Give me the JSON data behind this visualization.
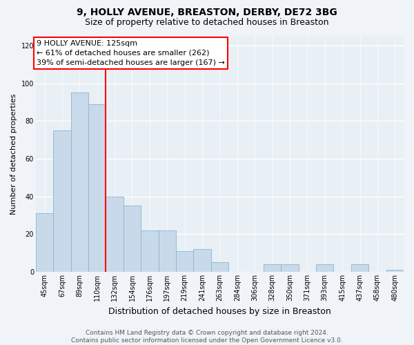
{
  "title": "9, HOLLY AVENUE, BREASTON, DERBY, DE72 3BG",
  "subtitle": "Size of property relative to detached houses in Breaston",
  "xlabel": "Distribution of detached houses by size in Breaston",
  "ylabel": "Number of detached properties",
  "bins": [
    "45sqm",
    "67sqm",
    "89sqm",
    "110sqm",
    "132sqm",
    "154sqm",
    "176sqm",
    "197sqm",
    "219sqm",
    "241sqm",
    "263sqm",
    "284sqm",
    "306sqm",
    "328sqm",
    "350sqm",
    "371sqm",
    "393sqm",
    "415sqm",
    "437sqm",
    "458sqm",
    "480sqm"
  ],
  "values": [
    31,
    75,
    95,
    89,
    40,
    35,
    22,
    22,
    11,
    12,
    5,
    0,
    0,
    4,
    4,
    0,
    4,
    0,
    4,
    0,
    1
  ],
  "bar_color": "#c8daea",
  "bar_edge_color": "#8ab5ce",
  "vline_color": "red",
  "vline_x": 3.5,
  "annotation_text": "9 HOLLY AVENUE: 125sqm\n← 61% of detached houses are smaller (262)\n39% of semi-detached houses are larger (167) →",
  "annotation_box_facecolor": "white",
  "annotation_box_edgecolor": "red",
  "ylim": [
    0,
    125
  ],
  "yticks": [
    0,
    20,
    40,
    60,
    80,
    100,
    120
  ],
  "footer": "Contains HM Land Registry data © Crown copyright and database right 2024.\nContains public sector information licensed under the Open Government Licence v3.0.",
  "fig_bg_color": "#f0f4f8",
  "plot_bg_color": "#e8eff5",
  "grid_color": "#ffffff",
  "title_fontsize": 10,
  "subtitle_fontsize": 9,
  "ylabel_fontsize": 8,
  "xlabel_fontsize": 9,
  "annotation_fontsize": 8,
  "footer_fontsize": 6.5,
  "tick_fontsize": 7
}
